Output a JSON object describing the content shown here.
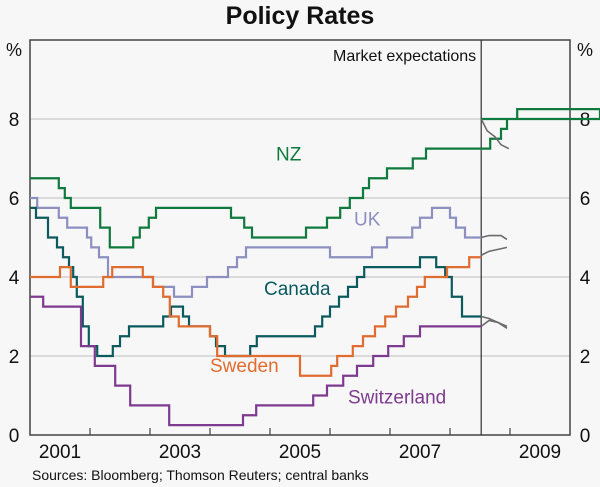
{
  "chart_data": {
    "type": "line",
    "title": "Policy Rates",
    "ylabel_left": "%",
    "ylabel_right": "%",
    "ylim": [
      0,
      10
    ],
    "xlim": [
      2001,
      2010
    ],
    "yticks": [
      0,
      2,
      4,
      6,
      8
    ],
    "xtick_labels": [
      "2001",
      "2003",
      "2005",
      "2007",
      "2009"
    ],
    "grid": true,
    "annotation": "Market expectations",
    "expectations_start": 2008.52,
    "series": [
      {
        "name": "NZ",
        "color": "#0f7a3d",
        "step": [
          [
            2001,
            6.5
          ],
          [
            2001.48,
            6.25
          ],
          [
            2001.58,
            6.0
          ],
          [
            2001.68,
            5.75
          ],
          [
            2002.17,
            5.25
          ],
          [
            2002.33,
            4.75
          ],
          [
            2002.72,
            5.0
          ],
          [
            2002.83,
            5.25
          ],
          [
            2002.98,
            5.5
          ],
          [
            2003.1,
            5.75
          ],
          [
            2004.35,
            5.5
          ],
          [
            2004.57,
            5.25
          ],
          [
            2004.7,
            5.0
          ],
          [
            2005.6,
            5.25
          ],
          [
            2005.95,
            5.5
          ],
          [
            2006.17,
            5.75
          ],
          [
            2006.33,
            6.0
          ],
          [
            2006.55,
            6.25
          ],
          [
            2006.65,
            6.5
          ],
          [
            2006.95,
            6.75
          ],
          [
            2007.38,
            7.0
          ],
          [
            2007.6,
            7.25
          ],
          [
            2008.67,
            7.5
          ],
          [
            2008.85,
            7.75
          ],
          [
            2008.95,
            8.0
          ],
          [
            2009.12,
            8.25
          ],
          [
            2010.5,
            8.0
          ]
        ],
        "expect": [
          [
            2008.52,
            8.0
          ],
          [
            2008.62,
            7.7
          ],
          [
            2008.75,
            7.55
          ],
          [
            2008.85,
            7.35
          ],
          [
            2008.98,
            7.25
          ]
        ],
        "label_at": [
          2005.1,
          6.95
        ]
      },
      {
        "name": "UK",
        "color": "#8c8fc0",
        "step": [
          [
            2001,
            6.0
          ],
          [
            2001.12,
            5.75
          ],
          [
            2001.48,
            5.5
          ],
          [
            2001.62,
            5.25
          ],
          [
            2001.95,
            5.0
          ],
          [
            2002.02,
            4.75
          ],
          [
            2002.15,
            4.5
          ],
          [
            2002.3,
            4.0
          ],
          [
            2003.05,
            3.75
          ],
          [
            2003.4,
            3.5
          ],
          [
            2003.7,
            3.75
          ],
          [
            2003.95,
            4.0
          ],
          [
            2004.3,
            4.25
          ],
          [
            2004.45,
            4.5
          ],
          [
            2004.6,
            4.75
          ],
          [
            2006.0,
            4.5
          ],
          [
            2006.7,
            4.75
          ],
          [
            2006.95,
            5.0
          ],
          [
            2007.37,
            5.25
          ],
          [
            2007.5,
            5.5
          ],
          [
            2007.7,
            5.75
          ],
          [
            2008.0,
            5.5
          ],
          [
            2008.1,
            5.25
          ],
          [
            2008.25,
            5.0
          ]
        ],
        "expect": [
          [
            2008.52,
            5.0
          ],
          [
            2008.65,
            5.05
          ],
          [
            2008.85,
            5.05
          ],
          [
            2008.95,
            4.95
          ]
        ],
        "label_at": [
          2006.4,
          5.3
        ]
      },
      {
        "name": "Canada",
        "color": "#0a5a5e",
        "step": [
          [
            2001,
            5.75
          ],
          [
            2001.1,
            5.5
          ],
          [
            2001.3,
            5.0
          ],
          [
            2001.45,
            4.75
          ],
          [
            2001.55,
            4.5
          ],
          [
            2001.65,
            4.25
          ],
          [
            2001.72,
            4.0
          ],
          [
            2001.78,
            3.5
          ],
          [
            2001.88,
            2.75
          ],
          [
            2001.98,
            2.25
          ],
          [
            2002.12,
            2.0
          ],
          [
            2002.38,
            2.25
          ],
          [
            2002.5,
            2.5
          ],
          [
            2002.65,
            2.75
          ],
          [
            2003.22,
            3.0
          ],
          [
            2003.35,
            3.25
          ],
          [
            2003.55,
            3.0
          ],
          [
            2003.65,
            2.75
          ],
          [
            2004.0,
            2.5
          ],
          [
            2004.1,
            2.25
          ],
          [
            2004.25,
            2.0
          ],
          [
            2004.67,
            2.25
          ],
          [
            2004.78,
            2.5
          ],
          [
            2005.75,
            2.75
          ],
          [
            2005.87,
            3.0
          ],
          [
            2006.0,
            3.25
          ],
          [
            2006.15,
            3.5
          ],
          [
            2006.3,
            3.75
          ],
          [
            2006.45,
            4.0
          ],
          [
            2006.57,
            4.25
          ],
          [
            2007.5,
            4.5
          ],
          [
            2007.77,
            4.25
          ],
          [
            2007.92,
            4.0
          ],
          [
            2008.03,
            3.5
          ],
          [
            2008.2,
            3.0
          ]
        ],
        "expect": [
          [
            2008.52,
            3.0
          ],
          [
            2008.65,
            2.95
          ],
          [
            2008.8,
            2.85
          ],
          [
            2008.95,
            2.75
          ]
        ],
        "label_at": [
          2004.9,
          3.55
        ]
      },
      {
        "name": "Sweden",
        "color": "#e06c30",
        "step": [
          [
            2001,
            4.0
          ],
          [
            2001.5,
            4.25
          ],
          [
            2001.68,
            3.75
          ],
          [
            2002.22,
            4.0
          ],
          [
            2002.37,
            4.25
          ],
          [
            2002.88,
            4.0
          ],
          [
            2003.05,
            3.75
          ],
          [
            2003.22,
            3.5
          ],
          [
            2003.33,
            3.0
          ],
          [
            2003.48,
            2.75
          ],
          [
            2004.0,
            2.5
          ],
          [
            2004.12,
            2.0
          ],
          [
            2005.5,
            1.5
          ],
          [
            2006.02,
            1.75
          ],
          [
            2006.12,
            2.0
          ],
          [
            2006.38,
            2.25
          ],
          [
            2006.55,
            2.5
          ],
          [
            2006.75,
            2.75
          ],
          [
            2006.92,
            3.0
          ],
          [
            2007.1,
            3.25
          ],
          [
            2007.3,
            3.5
          ],
          [
            2007.45,
            3.75
          ],
          [
            2007.58,
            4.0
          ],
          [
            2007.95,
            4.25
          ],
          [
            2008.32,
            4.5
          ]
        ],
        "expect": [
          [
            2008.52,
            4.55
          ],
          [
            2008.65,
            4.65
          ],
          [
            2008.8,
            4.7
          ],
          [
            2008.95,
            4.75
          ]
        ],
        "label_at": [
          2004.0,
          1.6
        ]
      },
      {
        "name": "Switzerland",
        "color": "#7d3a8f",
        "step": [
          [
            2001,
            3.5
          ],
          [
            2001.22,
            3.25
          ],
          [
            2001.85,
            2.25
          ],
          [
            2002.08,
            1.75
          ],
          [
            2002.42,
            1.25
          ],
          [
            2002.67,
            0.75
          ],
          [
            2003.32,
            0.25
          ],
          [
            2004.55,
            0.5
          ],
          [
            2004.77,
            0.75
          ],
          [
            2005.72,
            1.0
          ],
          [
            2005.95,
            1.25
          ],
          [
            2006.22,
            1.5
          ],
          [
            2006.45,
            1.75
          ],
          [
            2006.72,
            2.0
          ],
          [
            2006.97,
            2.25
          ],
          [
            2007.23,
            2.5
          ],
          [
            2007.5,
            2.75
          ]
        ],
        "expect": [
          [
            2008.52,
            2.75
          ],
          [
            2008.65,
            2.9
          ],
          [
            2008.8,
            2.85
          ],
          [
            2008.95,
            2.7
          ]
        ],
        "label_at": [
          2006.3,
          0.8
        ]
      }
    ],
    "expect_color": "#6b6b6b"
  },
  "sources": "Sources: Bloomberg; Thomson Reuters; central banks"
}
